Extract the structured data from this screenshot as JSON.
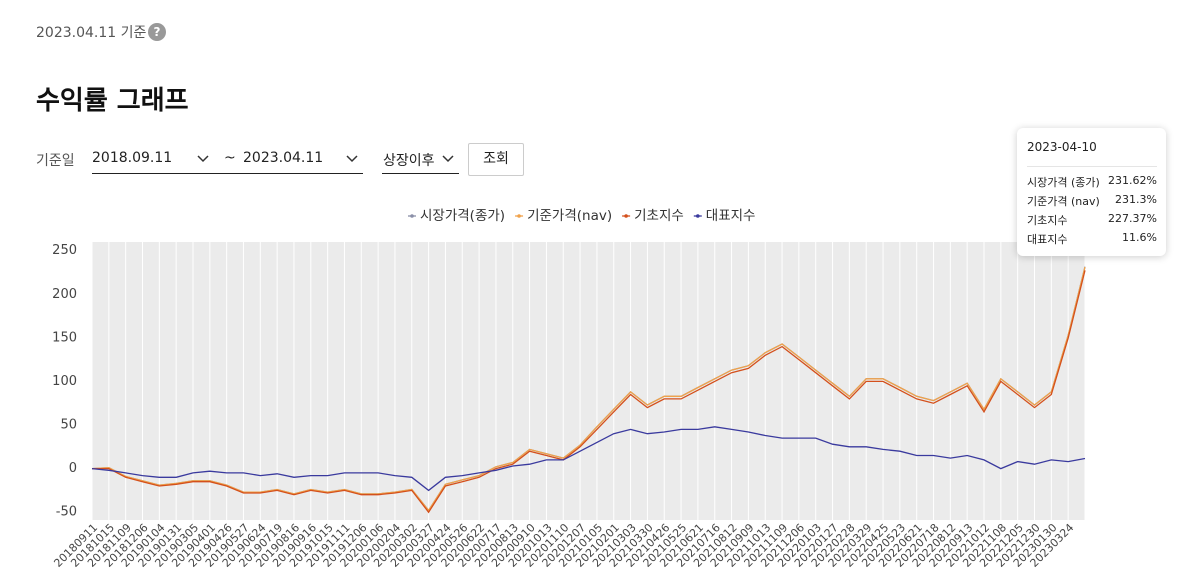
{
  "header": {
    "as_of": "2023.04.11 기준",
    "help": "?",
    "title": "수익률 그래프"
  },
  "controls": {
    "date_label": "기준일",
    "start": "2018.09.11",
    "separator": "~",
    "end": "2023.04.11",
    "period": "상장이후",
    "button": "조회"
  },
  "chart_data": {
    "type": "line",
    "categories": [
      "20180911",
      "20181015",
      "20181109",
      "20181206",
      "20190104",
      "20190131",
      "20190305",
      "20190401",
      "20190426",
      "20190527",
      "20190624",
      "20190719",
      "20190816",
      "20190916",
      "20191015",
      "20191111",
      "20191206",
      "20200106",
      "20200204",
      "20200302",
      "20200327",
      "20200424",
      "20200526",
      "20200622",
      "20200717",
      "20200813",
      "20200910",
      "20201013",
      "20201110",
      "20201207",
      "20210105",
      "20210201",
      "20210303",
      "20210330",
      "20210426",
      "20210525",
      "20210621",
      "20210716",
      "20210812",
      "20210909",
      "20211013",
      "20211109",
      "20211206",
      "20220103",
      "20220127",
      "20220228",
      "20220329",
      "20220425",
      "20220523",
      "20220621",
      "20220718",
      "20220812",
      "20220913",
      "20221012",
      "20221108",
      "20221205",
      "20221230",
      "20230130",
      "20230324",
      null
    ],
    "series": [
      {
        "name": "시장가격(종가)",
        "color": "#8a8fa8",
        "values": [
          0,
          1,
          -9,
          -14,
          -19,
          -17,
          -14,
          -14,
          -19,
          -27,
          -27,
          -24,
          -29,
          -24,
          -27,
          -24,
          -29,
          -29,
          -27,
          -24,
          -48,
          -18,
          -13,
          -8,
          2,
          7,
          22,
          17,
          12,
          27,
          48,
          68,
          88,
          73,
          83,
          83,
          93,
          103,
          113,
          118,
          133,
          143,
          128,
          113,
          98,
          83,
          103,
          103,
          93,
          83,
          78,
          88,
          98,
          68,
          103,
          88,
          73,
          88,
          153,
          231.62
        ]
      },
      {
        "name": "기준가격(nav)",
        "color": "#f0a24a",
        "values": [
          0,
          1,
          -9,
          -14,
          -19,
          -17,
          -14,
          -14,
          -19,
          -27,
          -27,
          -24,
          -29,
          -24,
          -27,
          -24,
          -29,
          -29,
          -27,
          -24,
          -48,
          -18,
          -13,
          -8,
          2,
          7,
          22,
          17,
          12,
          27,
          48,
          68,
          88,
          73,
          83,
          83,
          93,
          103,
          113,
          118,
          133,
          143,
          128,
          113,
          98,
          83,
          103,
          103,
          93,
          83,
          78,
          88,
          98,
          68,
          103,
          88,
          73,
          88,
          153,
          231.3
        ]
      },
      {
        "name": "기초지수",
        "color": "#d4501c",
        "values": [
          0,
          0,
          -10,
          -15,
          -20,
          -18,
          -15,
          -15,
          -20,
          -28,
          -28,
          -25,
          -30,
          -25,
          -28,
          -25,
          -30,
          -30,
          -28,
          -25,
          -50,
          -20,
          -15,
          -10,
          0,
          5,
          20,
          15,
          10,
          25,
          45,
          65,
          85,
          70,
          80,
          80,
          90,
          100,
          110,
          115,
          130,
          140,
          125,
          110,
          95,
          80,
          100,
          100,
          90,
          80,
          75,
          85,
          95,
          65,
          100,
          85,
          70,
          85,
          150,
          227.37
        ]
      },
      {
        "name": "대표지수",
        "color": "#3a3a9e",
        "values": [
          0,
          -2,
          -5,
          -8,
          -10,
          -10,
          -5,
          -3,
          -5,
          -5,
          -8,
          -6,
          -10,
          -8,
          -8,
          -5,
          -5,
          -5,
          -8,
          -10,
          -25,
          -10,
          -8,
          -5,
          -2,
          3,
          5,
          10,
          10,
          20,
          30,
          40,
          45,
          40,
          42,
          45,
          45,
          48,
          45,
          42,
          38,
          35,
          35,
          35,
          28,
          25,
          25,
          22,
          20,
          15,
          15,
          12,
          15,
          10,
          0,
          8,
          5,
          10,
          8,
          11.6
        ]
      }
    ],
    "ylim": [
      -59,
      260
    ],
    "yticks": [
      250,
      200,
      150,
      100,
      50,
      0,
      -50
    ],
    "grid": true,
    "background": "#ebebeb"
  },
  "tooltip": {
    "date": "2023-04-10",
    "rows": [
      {
        "name": "시장가격 (종가)",
        "value": "231.62%"
      },
      {
        "name": "기준가격 (nav)",
        "value": "231.3%"
      },
      {
        "name": "기초지수",
        "value": "227.37%"
      },
      {
        "name": "대표지수",
        "value": "11.6%"
      }
    ]
  }
}
